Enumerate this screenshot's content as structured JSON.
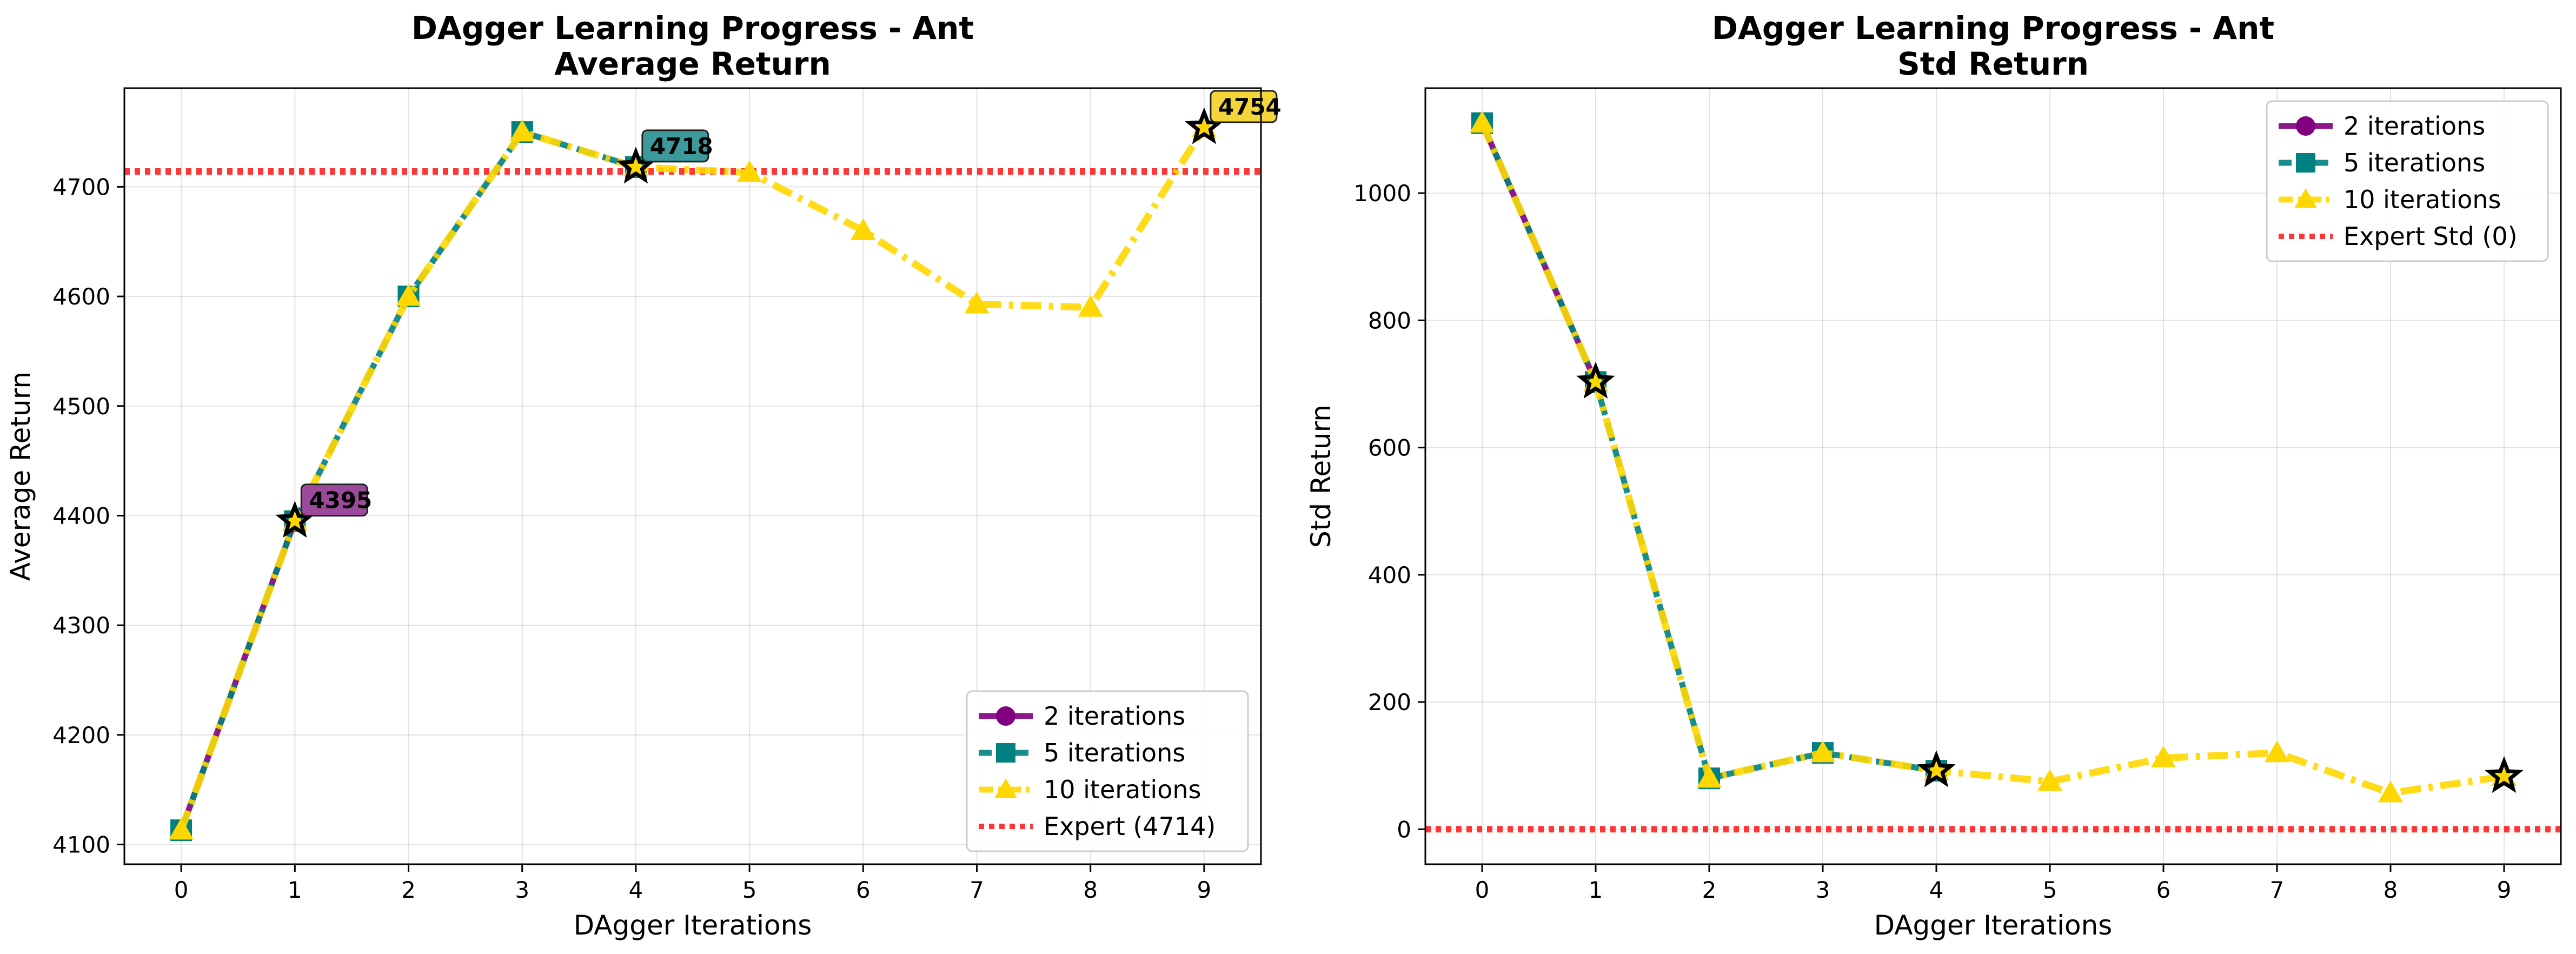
{
  "chart_data": [
    {
      "type": "line",
      "title": "DAgger Learning Progress - Ant",
      "subtitle": "Average Return",
      "xlabel": "DAgger Iterations",
      "ylabel": "Average Return",
      "xlim": [
        -0.5,
        9.5
      ],
      "ylim": [
        4082,
        4790
      ],
      "xticks": [
        0,
        1,
        2,
        3,
        4,
        5,
        6,
        7,
        8,
        9
      ],
      "yticks": [
        4100,
        4200,
        4300,
        4400,
        4500,
        4600,
        4700
      ],
      "grid": true,
      "legend_position": "lower-right",
      "series": [
        {
          "name": "2 iterations",
          "marker": "circle",
          "style": "solid",
          "color": "#800080",
          "x": [
            0,
            1
          ],
          "y": [
            4113,
            4395
          ]
        },
        {
          "name": "5 iterations",
          "marker": "square",
          "style": "dashed",
          "color": "#008080",
          "x": [
            0,
            1,
            2,
            3,
            4
          ],
          "y": [
            4113,
            4395,
            4600,
            4750,
            4718
          ]
        },
        {
          "name": "10 iterations",
          "marker": "triangle",
          "style": "dashdot",
          "color": "#FFD700",
          "x": [
            0,
            1,
            2,
            3,
            4,
            5,
            6,
            7,
            8,
            9
          ],
          "y": [
            4113,
            4395,
            4600,
            4750,
            4718,
            4713,
            4660,
            4593,
            4590,
            4754
          ]
        }
      ],
      "reference_line": {
        "name": "Expert (4714)",
        "y": 4714,
        "color": "#FF2020",
        "style": "dotted"
      },
      "annotations": [
        {
          "x": 1,
          "y": 4395,
          "text": "4395",
          "box_color": "#9B4A9B"
        },
        {
          "x": 4,
          "y": 4718,
          "text": "4718",
          "box_color": "#3C9A9A"
        },
        {
          "x": 9,
          "y": 4754,
          "text": "4754",
          "box_color": "#F5D63A"
        }
      ],
      "best_markers": [
        {
          "x": 1,
          "y": 4395
        },
        {
          "x": 4,
          "y": 4718
        },
        {
          "x": 9,
          "y": 4754
        }
      ]
    },
    {
      "type": "line",
      "title": "DAgger Learning Progress - Ant",
      "subtitle": "Std Return",
      "xlabel": "DAgger Iterations",
      "ylabel": "Std Return",
      "xlim": [
        -0.5,
        9.5
      ],
      "ylim": [
        -55,
        1165
      ],
      "xticks": [
        0,
        1,
        2,
        3,
        4,
        5,
        6,
        7,
        8,
        9
      ],
      "yticks": [
        0,
        200,
        400,
        600,
        800,
        1000
      ],
      "grid": true,
      "legend_position": "upper-right",
      "series": [
        {
          "name": "2 iterations",
          "marker": "circle",
          "style": "solid",
          "color": "#800080",
          "x": [
            0,
            1
          ],
          "y": [
            1110,
            703
          ]
        },
        {
          "name": "5 iterations",
          "marker": "square",
          "style": "dashed",
          "color": "#008080",
          "x": [
            0,
            1,
            2,
            3,
            4
          ],
          "y": [
            1110,
            703,
            80,
            120,
            92
          ]
        },
        {
          "name": "10 iterations",
          "marker": "triangle",
          "style": "dashdot",
          "color": "#FFD700",
          "x": [
            0,
            1,
            2,
            3,
            4,
            5,
            6,
            7,
            8,
            9
          ],
          "y": [
            1110,
            703,
            80,
            120,
            92,
            75,
            112,
            120,
            57,
            83
          ]
        }
      ],
      "reference_line": {
        "name": "Expert Std (0)",
        "y": 0,
        "color": "#FF2020",
        "style": "dotted"
      },
      "annotations": [],
      "best_markers": [
        {
          "x": 1,
          "y": 703
        },
        {
          "x": 4,
          "y": 92
        },
        {
          "x": 9,
          "y": 83
        }
      ]
    }
  ]
}
